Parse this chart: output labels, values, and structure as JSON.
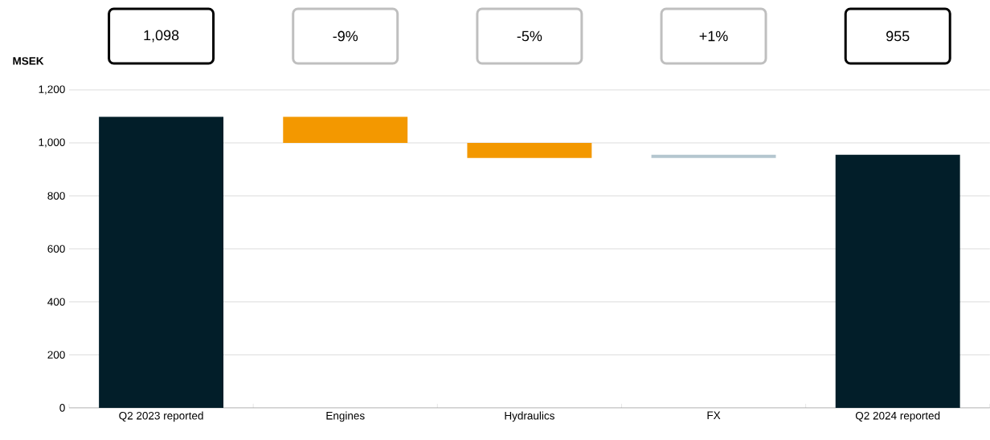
{
  "chart_data": {
    "type": "bar",
    "ylabel": "MSEK",
    "categories": [
      "Q2 2023 reported",
      "Engines",
      "Hydraulics",
      "FX",
      "Q2 2024 reported"
    ],
    "values": [
      1098,
      -98,
      -57,
      12,
      955
    ],
    "base": [
      0,
      1098,
      1000,
      943,
      0
    ],
    "colors": [
      "#021e29",
      "#f39800",
      "#f39800",
      "#b4c6cf",
      "#021e29"
    ],
    "annotations": [
      "1,098",
      "-9%",
      "-5%",
      "+1%",
      "955"
    ],
    "ylim": [
      0,
      1200
    ],
    "yticks": [
      0,
      200,
      400,
      600,
      800,
      {
        "value": 1000,
        "label": "1,000"
      },
      {
        "value": 1200,
        "label": "1,200"
      }
    ],
    "grid": "y"
  }
}
